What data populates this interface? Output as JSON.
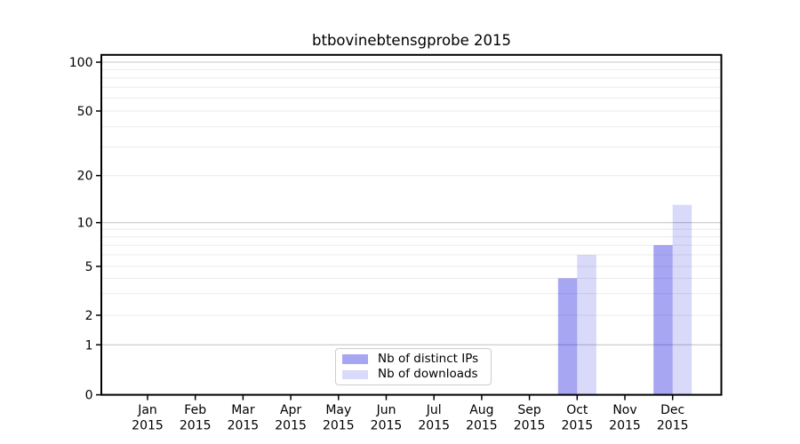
{
  "chart_data": {
    "type": "bar",
    "title": "btbovinebtensgprobe 2015",
    "xlabel": "",
    "ylabel": "",
    "categories": [
      {
        "month": "Jan",
        "year": "2015"
      },
      {
        "month": "Feb",
        "year": "2015"
      },
      {
        "month": "Mar",
        "year": "2015"
      },
      {
        "month": "Apr",
        "year": "2015"
      },
      {
        "month": "May",
        "year": "2015"
      },
      {
        "month": "Jun",
        "year": "2015"
      },
      {
        "month": "Jul",
        "year": "2015"
      },
      {
        "month": "Aug",
        "year": "2015"
      },
      {
        "month": "Sep",
        "year": "2015"
      },
      {
        "month": "Oct",
        "year": "2015"
      },
      {
        "month": "Nov",
        "year": "2015"
      },
      {
        "month": "Dec",
        "year": "2015"
      }
    ],
    "series": [
      {
        "name": "Nb of distinct IPs",
        "color": "#0000dd",
        "alpha": 0.35,
        "values": [
          0,
          0,
          0,
          0,
          0,
          0,
          0,
          0,
          0,
          4,
          0,
          7
        ]
      },
      {
        "name": "Nb of downloads",
        "color": "#0000dd",
        "alpha": 0.15,
        "values": [
          0,
          0,
          0,
          0,
          0,
          0,
          0,
          0,
          0,
          6,
          0,
          13
        ]
      }
    ],
    "y_axis": {
      "scale": "log above 1 with linear 0-1 baseline segment",
      "tick_values": [
        0,
        1,
        2,
        5,
        10,
        20,
        50,
        100
      ],
      "ylim": [
        0,
        112
      ]
    },
    "grid": {
      "on": true,
      "major_values": [
        1,
        10,
        100
      ],
      "minor_values": [
        2,
        3,
        4,
        5,
        6,
        7,
        8,
        9,
        20,
        30,
        40,
        50,
        60,
        70,
        80,
        90
      ],
      "major_color": "#c8c8c8",
      "minor_color": "#ebebeb"
    },
    "legend": {
      "position": "lower center",
      "frame_color": "#cccccc"
    },
    "axis_color": "#000000"
  }
}
